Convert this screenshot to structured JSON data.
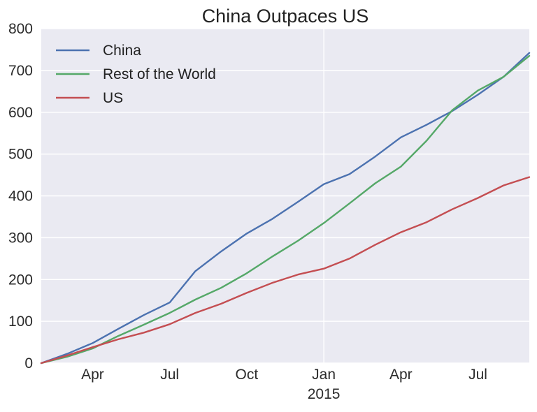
{
  "chart_data": {
    "type": "line",
    "title": "China Outpaces US",
    "xlabel": "",
    "ylabel": "",
    "x": [
      "2014-02",
      "2014-03",
      "2014-04",
      "2014-05",
      "2014-06",
      "2014-07",
      "2014-08",
      "2014-09",
      "2014-10",
      "2014-11",
      "2014-12",
      "2015-01",
      "2015-02",
      "2015-03",
      "2015-04",
      "2015-05",
      "2015-06",
      "2015-07",
      "2015-08",
      "2015-09"
    ],
    "xlim": [
      "2014-02",
      "2015-09"
    ],
    "ylim": [
      0,
      800
    ],
    "yticks": [
      0,
      100,
      200,
      300,
      400,
      500,
      600,
      700,
      800
    ],
    "xticks": [
      {
        "date": "2014-04",
        "label": "Apr",
        "sublabel": ""
      },
      {
        "date": "2014-07",
        "label": "Jul",
        "sublabel": ""
      },
      {
        "date": "2014-10",
        "label": "Oct",
        "sublabel": ""
      },
      {
        "date": "2015-01",
        "label": "Jan",
        "sublabel": "2015"
      },
      {
        "date": "2015-04",
        "label": "Apr",
        "sublabel": ""
      },
      {
        "date": "2015-07",
        "label": "Jul",
        "sublabel": ""
      }
    ],
    "vline_at": "2015-01",
    "grid": true,
    "legend_position": "top-left",
    "series": [
      {
        "name": "China",
        "color": "#4c72b0",
        "values": [
          0,
          22,
          48,
          82,
          115,
          145,
          220,
          267,
          310,
          345,
          386,
          428,
          452,
          494,
          540,
          570,
          603,
          642,
          685,
          742
        ]
      },
      {
        "name": "Rest of the World",
        "color": "#55a868",
        "values": [
          0,
          15,
          35,
          65,
          92,
          120,
          152,
          180,
          215,
          255,
          293,
          335,
          382,
          430,
          470,
          532,
          605,
          652,
          685,
          735
        ]
      },
      {
        "name": "US",
        "color": "#c44e52",
        "values": [
          0,
          18,
          38,
          57,
          73,
          93,
          120,
          142,
          168,
          192,
          212,
          226,
          250,
          283,
          313,
          337,
          368,
          395,
          425,
          445
        ]
      }
    ]
  }
}
